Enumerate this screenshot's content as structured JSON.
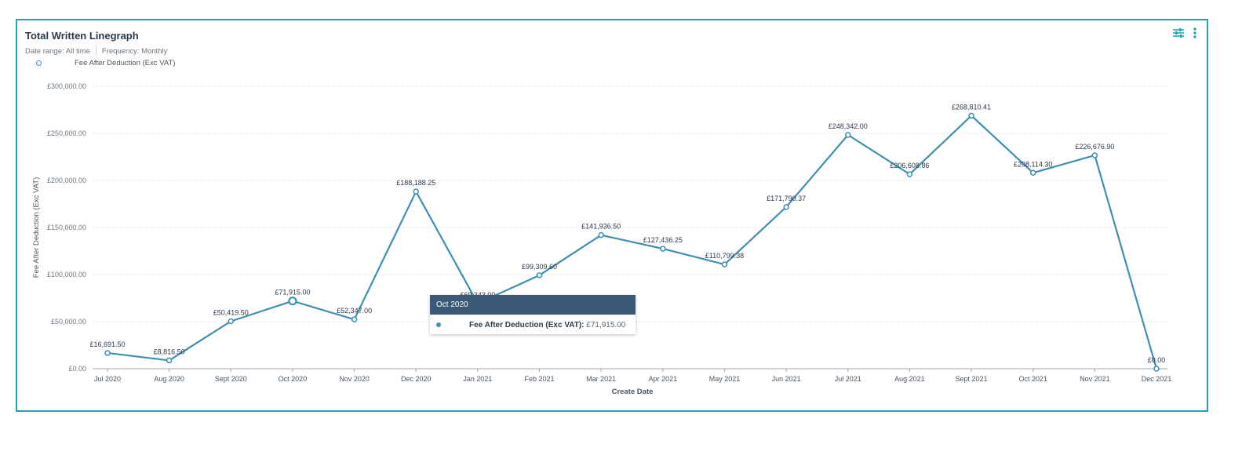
{
  "widget": {
    "title": "Total Written Linegraph",
    "date_range": "Date range: All time",
    "frequency": "Frequency: Monthly",
    "icons": [
      "filter-sliders-icon",
      "more-vertical-icon"
    ]
  },
  "tooltip": {
    "header": "Oct 2020",
    "label": "Fee After Deduction (Exc VAT):",
    "value": "£71,915.00"
  },
  "chart_data": {
    "type": "line",
    "title": "Total Written Linegraph",
    "xlabel": "Create Date",
    "ylabel": "Fee After Deduction (Exc VAT)",
    "ylim": [
      0,
      300000
    ],
    "yticks": [
      0,
      50000,
      100000,
      150000,
      200000,
      250000,
      300000
    ],
    "ytick_labels": [
      "£0.00",
      "£50,000.00",
      "£100,000.00",
      "£150,000.00",
      "£200,000.00",
      "£250,000.00",
      "£300,000.00"
    ],
    "categories": [
      "Jul 2020",
      "Aug 2020",
      "Sept 2020",
      "Oct 2020",
      "Nov 2020",
      "Dec 2020",
      "Jan 2021",
      "Feb 2021",
      "Mar 2021",
      "Apr 2021",
      "May 2021",
      "Jun 2021",
      "Jul 2021",
      "Aug 2021",
      "Sept 2021",
      "Oct 2021",
      "Nov 2021",
      "Dec 2021"
    ],
    "series": [
      {
        "name": "Fee After Deduction (Exc VAT)",
        "color": "#3d8fb3",
        "values": [
          16691.5,
          8816.5,
          50419.5,
          71915.0,
          52347.0,
          188188.25,
          69343.0,
          99309.6,
          141936.5,
          127436.25,
          110799.38,
          171790.37,
          248342.0,
          206608.86,
          268810.41,
          208114.3,
          226676.9,
          0.0
        ],
        "labels": [
          "£16,691.50",
          "£8,816.50",
          "£50,419.50",
          "£71,915.00",
          "£52,347.00",
          "£188,188.25",
          "£69,343.00",
          "£99,309.60",
          "£141,936.50",
          "£127,436.25",
          "£110,799.38",
          "£171,790.37",
          "£248,342.00",
          "£206,608.86",
          "£268,810.41",
          "£208,114.30",
          "£226,676.90",
          "£0.00"
        ]
      }
    ],
    "highlighted_category": "Oct 2020",
    "grid": true,
    "legend": "top-left"
  }
}
